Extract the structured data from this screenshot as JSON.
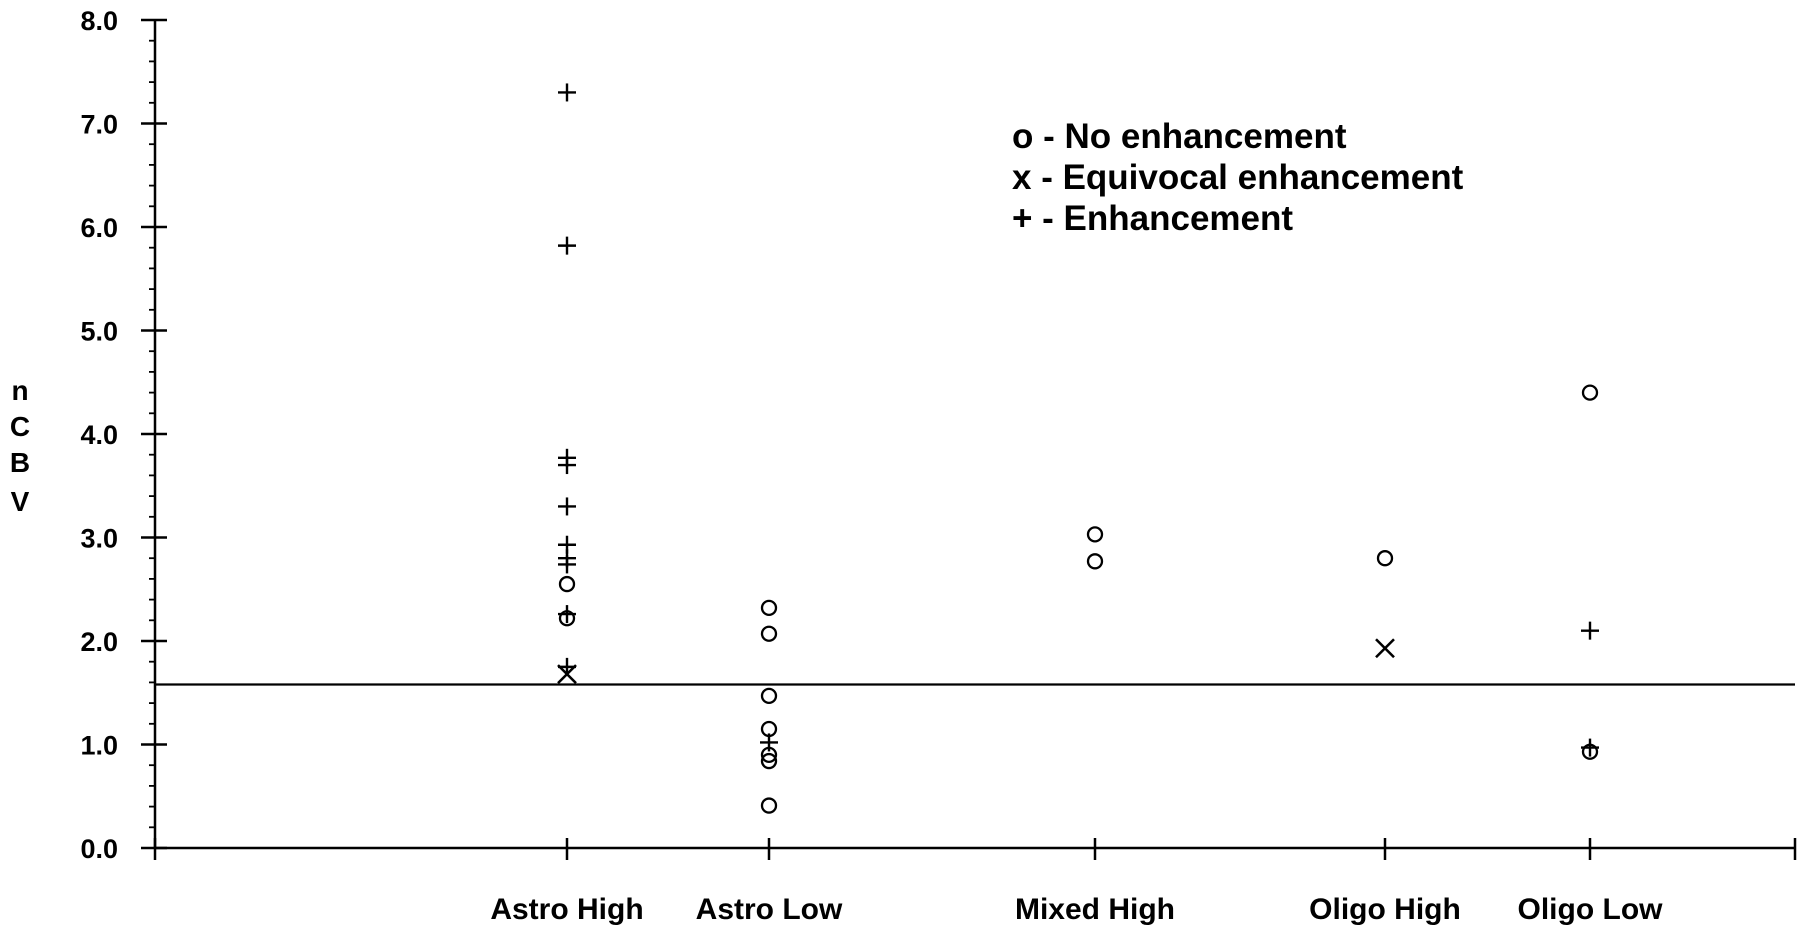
{
  "chart_data": {
    "type": "scatter",
    "title": "",
    "xlabel": "",
    "ylabel": "nCBV",
    "ylabel_letters": [
      "n",
      "C",
      "B",
      "V"
    ],
    "categories": [
      "Astro High",
      "Astro Low",
      "Mixed High",
      "Oligo High",
      "Oligo Low"
    ],
    "ylim": [
      0,
      8
    ],
    "yticks": [
      "0.0",
      "1.0",
      "2.0",
      "3.0",
      "4.0",
      "5.0",
      "6.0",
      "7.0",
      "8.0"
    ],
    "grid": false,
    "threshold": 1.58,
    "legend": {
      "placement": "top-center",
      "entries": [
        {
          "symbol": "o",
          "text": "o - No enhancement"
        },
        {
          "symbol": "x",
          "text": "x - Equivocal enhancement"
        },
        {
          "symbol": "+",
          "text": "+ - Enhancement"
        }
      ]
    },
    "series": [
      {
        "symbol": "o",
        "points": [
          {
            "category": "Astro High",
            "y": 2.55
          },
          {
            "category": "Astro High",
            "y": 2.22
          },
          {
            "category": "Astro Low",
            "y": 2.32
          },
          {
            "category": "Astro Low",
            "y": 2.07
          },
          {
            "category": "Astro Low",
            "y": 1.47
          },
          {
            "category": "Astro Low",
            "y": 1.15
          },
          {
            "category": "Astro Low",
            "y": 0.9
          },
          {
            "category": "Astro Low",
            "y": 0.84
          },
          {
            "category": "Astro Low",
            "y": 0.41
          },
          {
            "category": "Mixed High",
            "y": 3.03
          },
          {
            "category": "Mixed High",
            "y": 2.77
          },
          {
            "category": "Oligo High",
            "y": 2.8
          },
          {
            "category": "Oligo Low",
            "y": 4.4
          },
          {
            "category": "Oligo Low",
            "y": 0.93
          }
        ]
      },
      {
        "symbol": "x",
        "points": [
          {
            "category": "Astro High",
            "y": 1.68
          },
          {
            "category": "Oligo High",
            "y": 1.93
          }
        ]
      },
      {
        "symbol": "+",
        "points": [
          {
            "category": "Astro High",
            "y": 7.3
          },
          {
            "category": "Astro High",
            "y": 5.82
          },
          {
            "category": "Astro High",
            "y": 3.77
          },
          {
            "category": "Astro High",
            "y": 3.7
          },
          {
            "category": "Astro High",
            "y": 3.3
          },
          {
            "category": "Astro High",
            "y": 2.93
          },
          {
            "category": "Astro High",
            "y": 2.8
          },
          {
            "category": "Astro High",
            "y": 2.74
          },
          {
            "category": "Astro High",
            "y": 2.26
          },
          {
            "category": "Astro High",
            "y": 1.75
          },
          {
            "category": "Astro Low",
            "y": 1.02
          },
          {
            "category": "Oligo Low",
            "y": 2.1
          },
          {
            "category": "Oligo Low",
            "y": 0.97
          }
        ]
      }
    ]
  }
}
